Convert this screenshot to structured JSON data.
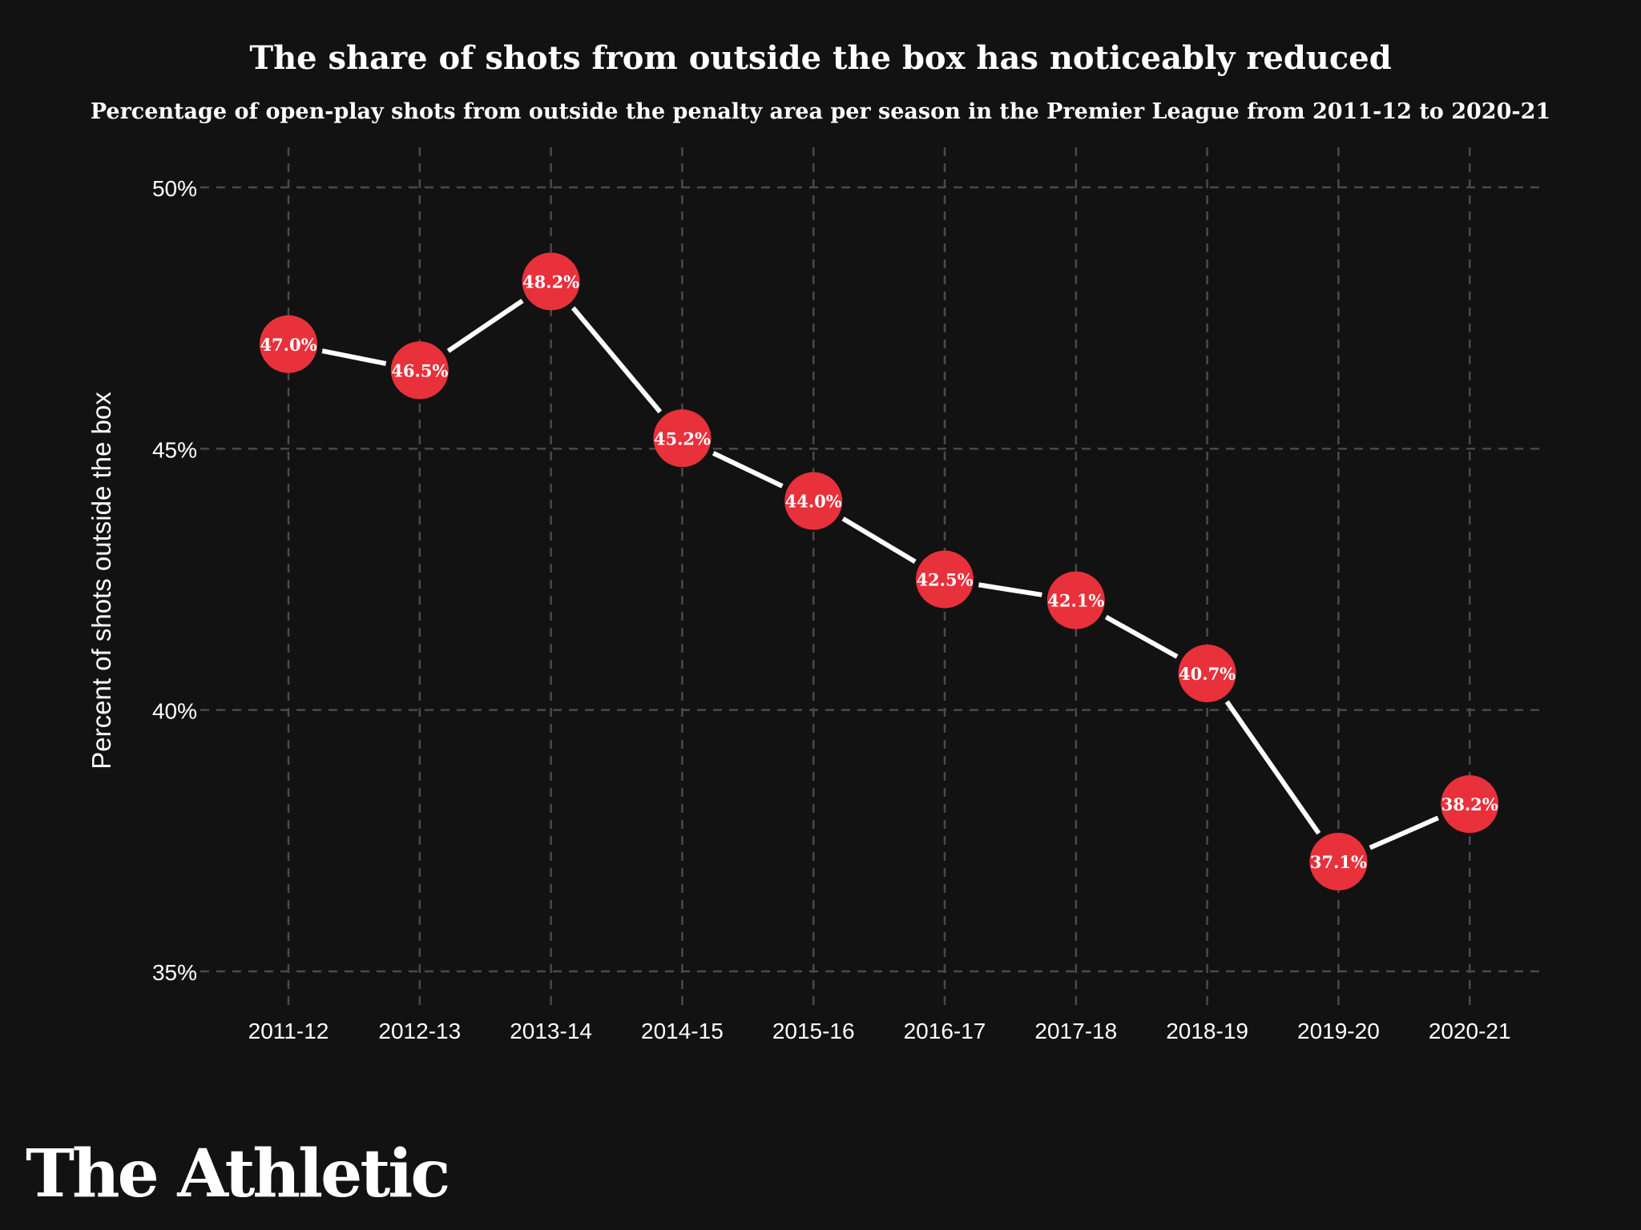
{
  "chart_data": {
    "type": "line",
    "title": "The share of shots from outside the box has noticeably reduced",
    "subtitle": "Percentage of open-play shots from outside the penalty area per season in the Premier League from 2011-12 to 2020-21",
    "xlabel": "",
    "ylabel": "Percent of shots outside the box",
    "categories": [
      "2011-12",
      "2012-13",
      "2013-14",
      "2014-15",
      "2015-16",
      "2016-17",
      "2017-18",
      "2018-19",
      "2019-20",
      "2020-21"
    ],
    "values": [
      47.0,
      46.5,
      48.2,
      45.2,
      44.0,
      42.5,
      42.1,
      40.7,
      37.1,
      38.2
    ],
    "point_labels": [
      "47.0%",
      "46.5%",
      "48.2%",
      "45.2%",
      "44.0%",
      "42.5%",
      "42.1%",
      "40.7%",
      "37.1%",
      "38.2%"
    ],
    "ylim": [
      35,
      50
    ],
    "yticks": [
      35,
      40,
      45,
      50
    ],
    "ytick_labels": [
      "35%",
      "40%",
      "45%",
      "50%"
    ],
    "grid": true,
    "legend": "none",
    "colors": {
      "background": "#121212",
      "marker": "#e8313b",
      "line": "#ffffff",
      "grid": "#4a4a4a",
      "text": "#ffffff"
    }
  },
  "brand": {
    "logo_text": "The Athletic"
  }
}
